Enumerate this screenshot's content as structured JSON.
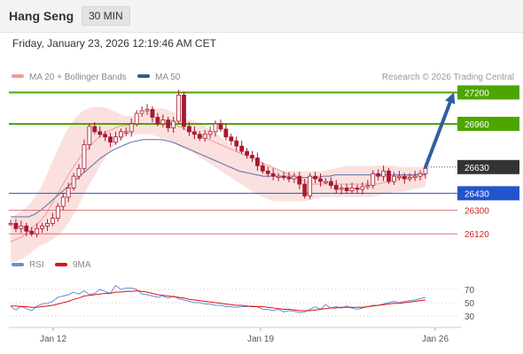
{
  "header": {
    "symbol": "Hang Seng",
    "timeframe": "30 MIN",
    "timestamp": "Friday, January 23, 2026 12:19:46 AM CET"
  },
  "legend": {
    "ma20_label": "MA 20 + Bollinger Bands",
    "ma50_label": "MA 50",
    "credit": "Research © 2026 Trading Central",
    "rsi_label": "RSI",
    "ma9_label": "9MA"
  },
  "colors": {
    "candle": "#a8192e",
    "ma20": "#f29a9a",
    "band_fill": "#fbe0e0",
    "ma50": "#5b6fa8",
    "resistance": "#4da600",
    "support_blue": "#2255cc",
    "support_red": "#e07070",
    "current": "#333333",
    "arrow": "#2f5fa0",
    "rsi": "#6a8fd8",
    "rsi_ma": "#e01010"
  },
  "chart_data": [
    {
      "type": "candlestick",
      "title": "Hang Seng",
      "timeframe": "30 MIN",
      "ylim": [
        26000,
        27230
      ],
      "x_tick_labels": [
        "Jan 12",
        "Jan 19",
        "Jan 26"
      ],
      "levels": [
        {
          "value": 27200,
          "label": "27200",
          "kind": "resistance"
        },
        {
          "value": 26960,
          "label": "26960",
          "kind": "resistance"
        },
        {
          "value": 26630,
          "label": "26630",
          "kind": "current"
        },
        {
          "value": 26430,
          "label": "26430",
          "kind": "support"
        },
        {
          "value": 26300,
          "label": "26300",
          "kind": "support-minor"
        },
        {
          "value": 26120,
          "label": "26120",
          "kind": "support-minor"
        }
      ],
      "close": [
        26200,
        26160,
        26180,
        26140,
        26120,
        26160,
        26180,
        26200,
        26240,
        26330,
        26400,
        26470,
        26560,
        26620,
        26800,
        26940,
        26900,
        26880,
        26860,
        26820,
        26860,
        26900,
        26900,
        26960,
        27040,
        27060,
        27070,
        27010,
        26960,
        26990,
        26930,
        26980,
        27180,
        26940,
        26900,
        26880,
        26850,
        26880,
        26900,
        26960,
        26920,
        26860,
        26830,
        26790,
        26750,
        26720,
        26700,
        26640,
        26600,
        26580,
        26560,
        26560,
        26550,
        26540,
        26560,
        26500,
        26410,
        26560,
        26540,
        26520,
        26520,
        26490,
        26460,
        26470,
        26450,
        26470,
        26460,
        26480,
        26490,
        26580,
        26560,
        26600,
        26520,
        26560,
        26560,
        26540,
        26550,
        26560,
        26580,
        26620
      ],
      "ma20": [
        26060,
        26080,
        26100,
        26140,
        26180,
        26220,
        26280,
        26360,
        26440,
        26520,
        26600,
        26670,
        26730,
        26780,
        26830,
        26870,
        26900,
        26920,
        26940,
        26950,
        26950,
        26960,
        26960,
        26960,
        26960,
        26960,
        26960,
        26960,
        26940,
        26920,
        26900,
        26880,
        26860,
        26840,
        26820,
        26800,
        26780,
        26760,
        26740,
        26720,
        26700,
        26680,
        26660,
        26640,
        26620,
        26600,
        26580,
        26560,
        26540,
        26520,
        26500,
        26500,
        26500,
        26500,
        26500,
        26500,
        26500,
        26500,
        26500,
        26500,
        26500,
        26500,
        26510,
        26520,
        26530,
        26550,
        26560,
        26570,
        26580,
        26580
      ],
      "bollinger_upper": [
        26240,
        26270,
        26300,
        26340,
        26400,
        26470,
        26570,
        26680,
        26780,
        26880,
        26960,
        27020,
        27060,
        27080,
        27090,
        27090,
        27080,
        27060,
        27040,
        27020,
        27020,
        27020,
        27030,
        27060,
        27080,
        27080,
        27070,
        27050,
        27020,
        27000,
        26990,
        26970,
        26950,
        26920,
        26890,
        26860,
        26820,
        26790,
        26760,
        26730,
        26700,
        26680,
        26660,
        26640,
        26620,
        26600,
        26600,
        26600,
        26600,
        26600,
        26600,
        26600,
        26600,
        26610,
        26620,
        26630,
        26640,
        26640,
        26640,
        26640,
        26640,
        26640,
        26640,
        26640,
        26640,
        26630,
        26630,
        26630,
        26630,
        26630
      ],
      "bollinger_lower": [
        25900,
        25910,
        25930,
        25960,
        26000,
        26030,
        26050,
        26080,
        26110,
        26160,
        26230,
        26310,
        26400,
        26490,
        26570,
        26650,
        26720,
        26780,
        26830,
        26860,
        26880,
        26880,
        26880,
        26880,
        26870,
        26850,
        26830,
        26810,
        26790,
        26770,
        26750,
        26720,
        26690,
        26660,
        26630,
        26600,
        26570,
        26540,
        26510,
        26480,
        26450,
        26420,
        26400,
        26380,
        26370,
        26370,
        26370,
        26370,
        26370,
        26370,
        26380,
        26390,
        26400,
        26400,
        26400,
        26400,
        26400,
        26400,
        26400,
        26400,
        26400,
        26410,
        26420,
        26430,
        26440,
        26440,
        26450,
        26460,
        26470,
        26480
      ],
      "ma50": [
        26250,
        26250,
        26250,
        26250,
        26270,
        26300,
        26340,
        26380,
        26420,
        26460,
        26500,
        26540,
        26580,
        26620,
        26660,
        26700,
        26730,
        26760,
        26780,
        26800,
        26820,
        26830,
        26840,
        26840,
        26840,
        26840,
        26830,
        26820,
        26800,
        26780,
        26760,
        26740,
        26720,
        26700,
        26680,
        26660,
        26640,
        26620,
        26600,
        26590,
        26580,
        26570,
        26560,
        26560,
        26560,
        26560,
        26560,
        26550,
        26550,
        26550,
        26550,
        26550,
        26560,
        26560,
        26570,
        26570,
        26570,
        26570,
        26570,
        26570,
        26570,
        26570,
        26570,
        26570,
        26570,
        26570,
        26570,
        26570,
        26570,
        26570
      ],
      "projection": {
        "from": 26630,
        "to": 27200
      }
    },
    {
      "type": "line",
      "series": [
        {
          "name": "RSI",
          "values": [
            44,
            39,
            45,
            41,
            38,
            45,
            48,
            49,
            52,
            58,
            60,
            62,
            66,
            63,
            68,
            62,
            64,
            70,
            67,
            64,
            76,
            70,
            72,
            72,
            70,
            63,
            62,
            60,
            58,
            60,
            57,
            60,
            56,
            54,
            52,
            50,
            50,
            48,
            48,
            46,
            46,
            44,
            44,
            43,
            44,
            44,
            45,
            44,
            40,
            40,
            38,
            40,
            36,
            38,
            37,
            35,
            36,
            40,
            44,
            40,
            47,
            42,
            44,
            42,
            45,
            42,
            40,
            42,
            44,
            46,
            46,
            48,
            50,
            52,
            50,
            52,
            53,
            54,
            56,
            58
          ]
        },
        {
          "name": "9MA",
          "values": [
            45,
            45,
            44,
            44,
            43,
            43,
            44,
            45,
            46,
            48,
            50,
            52,
            55,
            57,
            60,
            61,
            62,
            63,
            64,
            64,
            66,
            66,
            67,
            67,
            68,
            67,
            66,
            64,
            62,
            61,
            60,
            59,
            58,
            57,
            55,
            54,
            53,
            52,
            51,
            50,
            49,
            48,
            47,
            46,
            46,
            45,
            44,
            44,
            44,
            43,
            42,
            41,
            40,
            40,
            39,
            38,
            38,
            38,
            39,
            40,
            41,
            42,
            42,
            43,
            43,
            43,
            43,
            43,
            44,
            45,
            46,
            47,
            48,
            49,
            49,
            50,
            51,
            52,
            53,
            54
          ]
        }
      ],
      "y_ticks": [
        "70",
        "50",
        "30"
      ],
      "ylim": [
        18,
        82
      ]
    }
  ]
}
